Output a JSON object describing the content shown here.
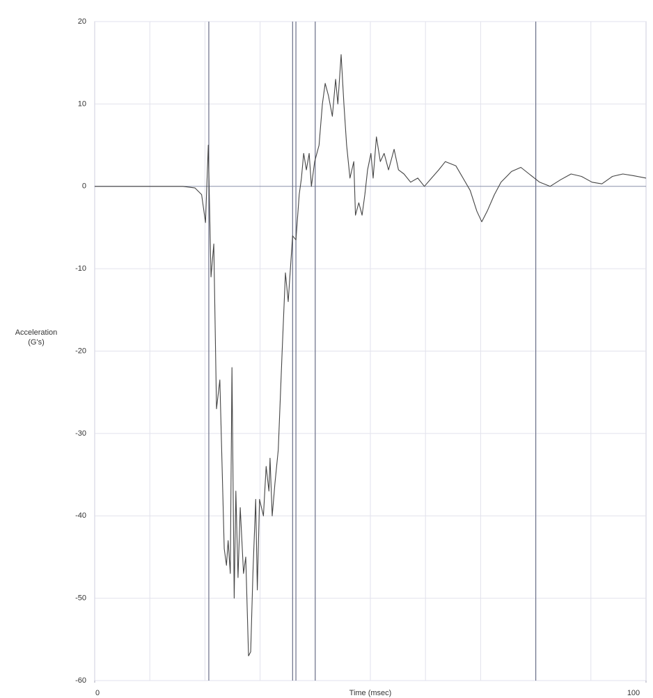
{
  "chart_data": {
    "type": "line",
    "y_label": [
      "Acceleration",
      "(G's)"
    ],
    "x_label": "Time (msec)",
    "xlim": [
      0,
      100
    ],
    "xticks": [
      0,
      100
    ],
    "xgrid": [
      10,
      20,
      30,
      40,
      50,
      60,
      70,
      80,
      90
    ],
    "ylim": [
      -60,
      20
    ],
    "yticks": [
      20,
      10,
      0,
      -10,
      -20,
      -30,
      -40,
      -50,
      -60
    ],
    "grid": true,
    "event_lines": [
      20.7,
      35.9,
      36.5,
      40,
      80
    ],
    "series": [
      {
        "color": "#444444",
        "x": [
          0,
          10,
          16,
          18.2,
          19.4,
          20.1,
          20.6,
          21.1,
          21.6,
          22.1,
          22.7,
          23.5,
          23.9,
          24.2,
          24.6,
          24.9,
          25.3,
          25.6,
          26,
          26.4,
          27,
          27.4,
          27.9,
          28.3,
          28.7,
          29.2,
          29.5,
          29.9,
          30.6,
          31.1,
          31.6,
          31.8,
          32.2,
          32.7,
          33.3,
          34,
          34.6,
          35.1,
          35.9,
          36.5,
          37.1,
          37.5,
          37.9,
          38.4,
          38.9,
          39.3,
          39.9,
          40.7,
          41.3,
          41.8,
          42.4,
          43.1,
          43.7,
          44.1,
          44.7,
          45.2,
          45.7,
          46.3,
          47,
          47.3,
          47.9,
          48.5,
          49,
          49.5,
          50.1,
          50.5,
          51.1,
          51.8,
          52.5,
          53.3,
          54.3,
          55.1,
          56.1,
          57.3,
          58.6,
          59.8,
          61.1,
          62.4,
          63.6,
          65.5,
          66.8,
          68.1,
          69.3,
          70.2,
          71.2,
          72.5,
          73.7,
          75.6,
          77.3,
          78.8,
          80.7,
          82.6,
          84.5,
          86.4,
          88.3,
          90.2,
          92,
          93.9,
          95.8,
          97.7,
          100
        ],
        "values": [
          0,
          0,
          0,
          -0.2,
          -1,
          -4.4,
          5,
          -11,
          -7,
          -27,
          -23.5,
          -44,
          -46,
          -43,
          -47,
          -22,
          -50,
          -37,
          -47.5,
          -39,
          -47,
          -45,
          -57,
          -56.5,
          -47,
          -38,
          -49,
          -38,
          -40,
          -34,
          -37,
          -33,
          -40,
          -36,
          -32,
          -20,
          -10.5,
          -14,
          -6,
          -6.5,
          -1,
          1,
          4,
          2,
          4,
          0,
          3,
          5,
          10,
          12.5,
          11,
          8.5,
          13,
          10,
          16,
          10,
          5,
          1,
          3,
          -3.5,
          -2,
          -3.5,
          -1,
          2,
          4,
          1,
          6,
          3,
          4,
          2,
          4.5,
          2,
          1.5,
          0.5,
          1,
          0,
          1,
          2,
          3,
          2.5,
          1,
          -0.5,
          -3,
          -4.3,
          -3,
          -1,
          0.5,
          1.8,
          2.3,
          1.5,
          0.5,
          0,
          0.8,
          1.5,
          1.2,
          0.5,
          0.3,
          1.2,
          1.5,
          1.3,
          1
        ]
      }
    ]
  }
}
